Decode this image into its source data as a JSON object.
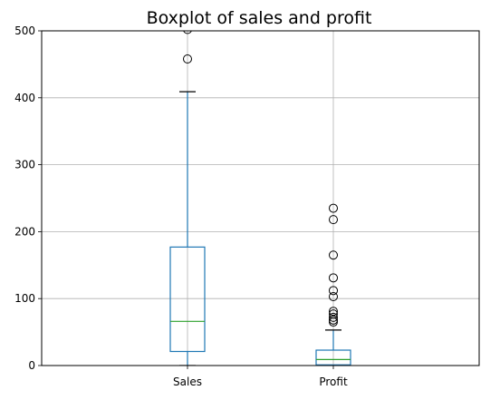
{
  "chart_data": {
    "type": "box",
    "title": "Boxplot of sales and profit",
    "categories": [
      "Sales",
      "Profit"
    ],
    "xlabel": "",
    "ylabel": "",
    "ylim": [
      0,
      500
    ],
    "yticks": [
      0,
      100,
      200,
      300,
      400,
      500
    ],
    "grid": true,
    "box_color": "#1f77b4",
    "median_color": "#2ca02c",
    "series": [
      {
        "name": "Sales",
        "whisker_low": 0,
        "q1": 21,
        "median": 66,
        "q3": 177,
        "whisker_high": 409,
        "outliers": [
          458,
          502
        ]
      },
      {
        "name": "Profit",
        "whisker_low": 0,
        "q1": 1,
        "median": 9,
        "q3": 23,
        "whisker_high": 53,
        "outliers": [
          65,
          68,
          72,
          77,
          81,
          103,
          112,
          131,
          165,
          218,
          235
        ]
      }
    ]
  }
}
